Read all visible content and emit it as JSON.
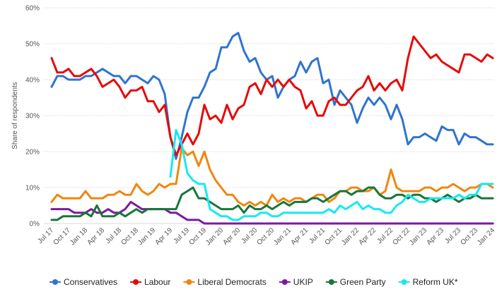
{
  "chart_data": {
    "type": "line",
    "y_label": "Share of respondents",
    "ylim": [
      0,
      60
    ],
    "yticks": [
      {
        "value": 0,
        "label": "0%"
      },
      {
        "value": 10,
        "label": "10%"
      },
      {
        "value": 20,
        "label": "20%"
      },
      {
        "value": 30,
        "label": "30%"
      },
      {
        "value": 40,
        "label": "40%"
      },
      {
        "value": 50,
        "label": "50%"
      },
      {
        "value": 60,
        "label": "60%"
      }
    ],
    "grid": true,
    "legend": "bottom",
    "categories": [
      "Jul 17",
      null,
      null,
      "Oct 17",
      null,
      null,
      "Jan 18",
      null,
      null,
      "Apr 18",
      null,
      null,
      "Jul 18",
      null,
      null,
      "Oct 18",
      null,
      null,
      "Jan 19",
      null,
      null,
      "Apr 19",
      null,
      null,
      "Jul 19",
      null,
      null,
      "Oct 19",
      null,
      null,
      "Jan 20",
      null,
      null,
      "Apr 20",
      null,
      null,
      "Jul 20",
      null,
      null,
      "Oct 20",
      null,
      null,
      "Jan 21",
      null,
      null,
      "Apr 21",
      null,
      null,
      "Jul 21",
      null,
      null,
      "Oct 21",
      null,
      null,
      "Jan 22",
      null,
      null,
      "Apr 22",
      null,
      null,
      "Jul 22",
      null,
      null,
      "Oct 22",
      null,
      null,
      "Jan 23",
      null,
      null,
      "Apr 23",
      null,
      null,
      "Jul 23",
      null,
      null,
      "Oct 23",
      null,
      null,
      "Jan 24"
    ],
    "series": [
      {
        "name": "Conservatives",
        "color": "#2f74d0",
        "values": [
          38,
          41,
          41,
          40,
          40,
          40,
          41,
          41,
          42,
          43,
          42,
          41,
          41,
          39,
          41,
          41,
          40,
          39,
          41,
          40,
          36,
          24,
          18,
          24,
          31,
          35,
          35,
          38,
          42,
          43,
          49,
          49,
          52,
          53,
          48,
          45,
          46,
          42,
          40,
          41,
          35,
          38,
          40,
          41,
          45,
          42,
          45,
          46,
          39,
          40,
          33,
          37,
          35,
          33,
          28,
          32,
          35,
          33,
          35,
          33,
          29,
          33,
          29,
          22,
          24,
          24,
          25,
          24,
          23,
          27,
          26,
          26,
          22,
          25,
          24,
          24,
          23,
          22,
          22
        ]
      },
      {
        "name": "Labour",
        "color": "#e60a0a",
        "values": [
          46,
          42,
          42,
          43,
          41,
          41,
          42,
          43,
          41,
          38,
          39,
          40,
          38,
          35,
          37,
          37,
          38,
          34,
          34,
          31,
          33,
          24,
          19,
          22,
          25,
          22,
          25,
          33,
          29,
          30,
          28,
          33,
          29,
          32,
          33,
          38,
          39,
          36,
          40,
          38,
          40,
          38,
          40,
          38,
          37,
          32,
          34,
          30,
          30,
          34,
          35,
          33,
          33,
          35,
          37,
          38,
          41,
          37,
          39,
          37,
          39,
          40,
          37,
          46,
          52,
          50,
          48,
          46,
          47,
          45,
          44,
          43,
          42,
          47,
          47,
          46,
          45,
          47,
          46
        ]
      },
      {
        "name": "Liberal Democrats",
        "color": "#f0870e",
        "values": [
          6,
          8,
          7,
          7,
          7,
          7,
          9,
          7,
          7,
          7,
          8,
          8,
          9,
          8,
          8,
          11,
          9,
          8,
          9,
          11,
          10,
          11,
          11,
          21,
          19,
          20,
          16,
          20,
          15,
          12,
          10,
          8,
          8,
          6,
          5,
          6,
          5,
          6,
          5,
          8,
          6,
          7,
          6,
          7,
          7,
          6,
          7,
          8,
          8,
          6,
          7,
          9,
          9,
          10,
          10,
          9,
          9,
          10,
          8,
          9,
          15,
          10,
          9,
          9,
          9,
          9,
          10,
          10,
          9,
          10,
          10,
          11,
          10,
          9,
          10,
          10,
          11,
          11,
          10
        ]
      },
      {
        "name": "UKIP",
        "color": "#7b1a9e",
        "values": [
          4,
          4,
          4,
          4,
          3,
          3,
          3,
          4,
          3,
          3,
          4,
          3,
          3,
          4,
          6,
          5,
          4,
          4,
          4,
          4,
          4,
          3,
          3,
          2,
          1,
          1,
          1,
          0,
          0,
          0,
          0,
          0,
          0,
          0,
          0,
          0,
          0,
          0,
          0,
          0,
          0,
          0,
          0,
          0,
          0,
          0,
          0,
          0,
          0,
          0,
          0,
          0,
          0,
          0,
          0,
          0,
          0,
          0,
          0,
          0,
          0,
          0,
          0,
          0,
          0,
          0,
          0,
          0,
          0,
          0,
          0,
          0,
          0,
          0,
          0,
          0,
          0,
          0,
          0
        ]
      },
      {
        "name": "Green Party",
        "color": "#18763a",
        "values": [
          1,
          1,
          2,
          2,
          2,
          2,
          3,
          2,
          5,
          2,
          2,
          2,
          3,
          2,
          3,
          4,
          3,
          4,
          4,
          4,
          4,
          4,
          4,
          8,
          9,
          10,
          7,
          7,
          6,
          5,
          4,
          4,
          4,
          5,
          3,
          5,
          4,
          4,
          5,
          4,
          5,
          6,
          5,
          6,
          6,
          6,
          7,
          7,
          6,
          7,
          8,
          9,
          9,
          8,
          9,
          9,
          10,
          10,
          8,
          7,
          7,
          8,
          8,
          7,
          8,
          8,
          7,
          7,
          6,
          7,
          8,
          7,
          6,
          7,
          7,
          8,
          7,
          7,
          7
        ]
      },
      {
        "name": "Reform UK*",
        "color": "#17e8f2",
        "values": [
          null,
          null,
          null,
          null,
          null,
          null,
          null,
          null,
          null,
          null,
          null,
          null,
          null,
          null,
          null,
          null,
          null,
          null,
          null,
          null,
          null,
          13,
          26,
          22,
          14,
          12,
          11,
          11,
          4,
          3,
          2,
          2,
          1,
          1,
          2,
          2,
          2,
          3,
          3,
          2,
          2,
          3,
          3,
          3,
          3,
          3,
          3,
          3,
          3,
          4,
          3,
          5,
          4,
          5,
          6,
          4,
          5,
          4,
          4,
          3,
          3,
          5,
          6,
          8,
          7,
          6,
          6,
          7,
          7,
          7,
          7,
          7,
          8,
          7,
          8,
          8,
          11,
          11,
          11
        ]
      }
    ]
  }
}
